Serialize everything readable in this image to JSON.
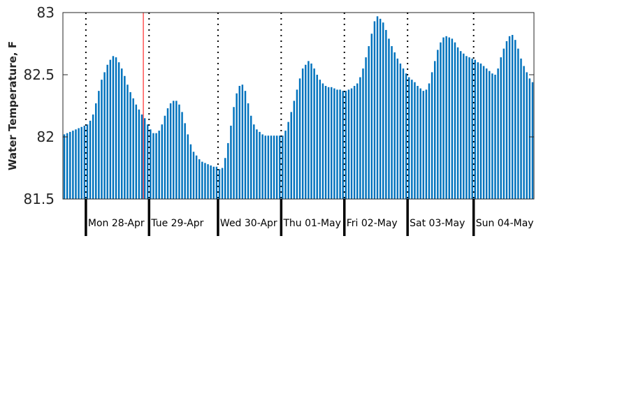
{
  "chart_data": {
    "type": "bar",
    "title": "",
    "ylabel": "Water Temperature, F",
    "xlabel": "",
    "ylim": [
      81.5,
      83
    ],
    "yticks": [
      81.5,
      82,
      82.5,
      83
    ],
    "ytick_labels": [
      "81.5",
      "82",
      "82.5",
      "83"
    ],
    "day_labels": [
      "Mon 28-Apr",
      "Tue 29-Apr",
      "Wed 30-Apr",
      "Thu 01-May",
      "Fri 02-May",
      "Sat 03-May",
      "Sun 04-May"
    ],
    "values": [
      82.02,
      82.03,
      82.04,
      82.05,
      82.06,
      82.07,
      82.08,
      82.09,
      82.1,
      82.13,
      82.18,
      82.27,
      82.37,
      82.46,
      82.52,
      82.58,
      82.62,
      82.65,
      82.64,
      82.6,
      82.55,
      82.49,
      82.42,
      82.36,
      82.31,
      82.26,
      82.22,
      82.18,
      82.15,
      82.1,
      82.06,
      82.03,
      82.03,
      82.05,
      82.1,
      82.17,
      82.23,
      82.27,
      82.29,
      82.29,
      82.26,
      82.2,
      82.11,
      82.02,
      81.94,
      81.88,
      81.85,
      81.82,
      81.8,
      81.79,
      81.78,
      81.77,
      81.76,
      81.76,
      81.74,
      81.75,
      81.83,
      81.95,
      82.09,
      82.24,
      82.35,
      82.41,
      82.42,
      82.37,
      82.27,
      82.17,
      82.1,
      82.06,
      82.04,
      82.02,
      82.01,
      82.01,
      82.01,
      82.01,
      82.01,
      82.01,
      82.01,
      82.05,
      82.12,
      82.2,
      82.29,
      82.38,
      82.47,
      82.55,
      82.58,
      82.61,
      82.59,
      82.55,
      82.5,
      82.46,
      82.43,
      82.41,
      82.4,
      82.4,
      82.39,
      82.38,
      82.38,
      82.37,
      82.37,
      82.38,
      82.39,
      82.41,
      82.43,
      82.48,
      82.55,
      82.64,
      82.73,
      82.83,
      82.93,
      82.97,
      82.95,
      82.92,
      82.86,
      82.79,
      82.73,
      82.68,
      82.63,
      82.59,
      82.55,
      82.51,
      82.48,
      82.46,
      82.44,
      82.41,
      82.39,
      82.37,
      82.38,
      82.43,
      82.52,
      82.61,
      82.7,
      82.76,
      82.8,
      82.81,
      82.8,
      82.79,
      82.76,
      82.72,
      82.69,
      82.67,
      82.65,
      82.64,
      82.63,
      82.62,
      82.6,
      82.59,
      82.57,
      82.55,
      82.53,
      82.51,
      82.5,
      82.55,
      82.64,
      82.71,
      82.77,
      82.81,
      82.82,
      82.78,
      82.71,
      82.63,
      82.57,
      82.52,
      82.47,
      82.44
    ],
    "current_time_marker_index": 28,
    "day_start_indices": [
      8,
      30,
      54,
      76,
      98,
      120,
      143
    ],
    "grid": "vertical dotted lines at day boundaries",
    "legend": "none",
    "colors": {
      "bar": "#0072bd",
      "marker": "#ff0000",
      "axis": "#262626",
      "day_tick": "#000000"
    }
  }
}
